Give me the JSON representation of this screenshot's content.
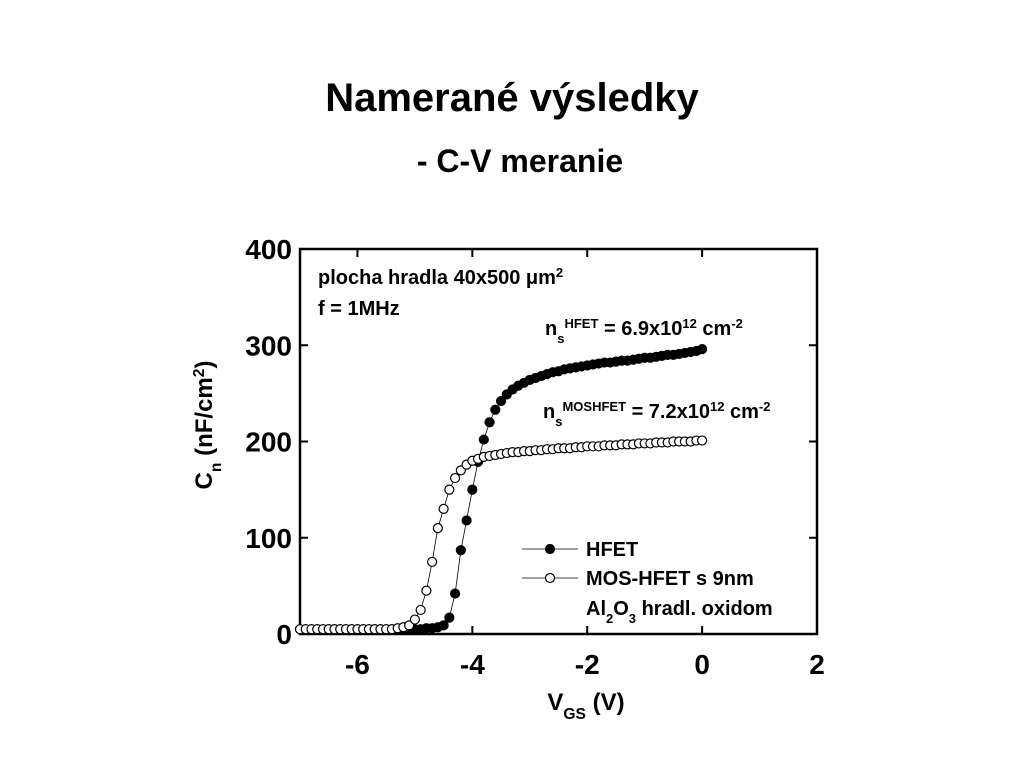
{
  "chart_data": {
    "type": "scatter",
    "title": "Namerané výsledky",
    "subtitle": "- C-V meranie",
    "x_label": [
      {
        "text": "V"
      },
      {
        "text": "GS",
        "shift": "sub"
      },
      {
        "text": " (V)"
      }
    ],
    "y_label": [
      {
        "text": "C"
      },
      {
        "text": "n",
        "shift": "sub"
      },
      {
        "text": " (nF/cm"
      },
      {
        "text": "2",
        "shift": "super"
      },
      {
        "text": ")"
      }
    ],
    "annotations": [
      [
        {
          "text": "plocha hradla 40x500 μm"
        },
        {
          "text": "2",
          "shift": "super"
        }
      ],
      [
        {
          "text": "f = 1MHz"
        }
      ],
      [
        {
          "text": "n"
        },
        {
          "text": "s",
          "shift": "sub"
        },
        {
          "text": "HFET",
          "shift": "super"
        },
        {
          "text": " = 6.9x10"
        },
        {
          "text": "12",
          "shift": "super"
        },
        {
          "text": " cm"
        },
        {
          "text": "-2",
          "shift": "super"
        }
      ],
      [
        {
          "text": "n"
        },
        {
          "text": "s",
          "shift": "sub"
        },
        {
          "text": "MOSHFET",
          "shift": "super"
        },
        {
          "text": " = 7.2x10"
        },
        {
          "text": "12",
          "shift": "super"
        },
        {
          "text": " cm"
        },
        {
          "text": "-2",
          "shift": "super"
        }
      ]
    ],
    "legend_note": [
      {
        "text": "Al"
      },
      {
        "text": "2",
        "shift": "sub"
      },
      {
        "text": "O"
      },
      {
        "text": "3",
        "shift": "sub"
      },
      {
        "text": " hradl. oxidom"
      }
    ],
    "xlim": [
      -7,
      2
    ],
    "ylim": [
      0,
      400
    ],
    "xticks": [
      -6,
      -4,
      -2,
      0,
      2
    ],
    "yticks": [
      0,
      100,
      200,
      300,
      400
    ],
    "x": [
      -7.0,
      -6.9,
      -6.8,
      -6.7,
      -6.6,
      -6.5,
      -6.4,
      -6.3,
      -6.2,
      -6.1,
      -6.0,
      -5.9,
      -5.8,
      -5.7,
      -5.6,
      -5.5,
      -5.4,
      -5.3,
      -5.2,
      -5.1,
      -5.0,
      -4.9,
      -4.8,
      -4.7,
      -4.6,
      -4.5,
      -4.4,
      -4.3,
      -4.2,
      -4.1,
      -4.0,
      -3.9,
      -3.8,
      -3.7,
      -3.6,
      -3.5,
      -3.4,
      -3.3,
      -3.2,
      -3.1,
      -3.0,
      -2.9,
      -2.8,
      -2.7,
      -2.6,
      -2.5,
      -2.4,
      -2.3,
      -2.2,
      -2.1,
      -2.0,
      -1.9,
      -1.8,
      -1.7,
      -1.6,
      -1.5,
      -1.4,
      -1.3,
      -1.2,
      -1.1,
      -1.0,
      -0.9,
      -0.8,
      -0.7,
      -0.6,
      -0.5,
      -0.4,
      -0.3,
      -0.2,
      -0.1,
      0
    ],
    "series": [
      {
        "name": "HFET",
        "color": "#000000",
        "marker": "filled",
        "values": [
          5,
          5,
          5,
          5,
          5,
          5,
          5,
          5,
          5,
          5,
          5,
          5,
          5,
          5,
          5,
          5,
          5,
          5,
          5,
          5,
          5,
          5,
          6,
          6,
          7,
          9,
          17,
          42,
          87,
          118,
          150,
          179,
          202,
          220,
          233,
          242,
          249,
          254,
          258,
          261,
          264,
          266,
          268,
          270,
          272,
          273,
          275,
          276,
          277,
          278,
          279,
          280,
          281,
          282,
          282,
          283,
          284,
          284,
          285,
          286,
          287,
          287,
          288,
          289,
          290,
          290,
          291,
          292,
          293,
          294,
          296
        ]
      },
      {
        "name": "MOS-HFET s 9nm",
        "color": "#000000",
        "marker": "open",
        "values": [
          5,
          5,
          5,
          5,
          5,
          5,
          5,
          5,
          5,
          5,
          5,
          5,
          5,
          5,
          5,
          5,
          5,
          6,
          7,
          9,
          15,
          25,
          45,
          75,
          110,
          130,
          150,
          162,
          170,
          176,
          180,
          182,
          184,
          185,
          186,
          187,
          188,
          189,
          189,
          190,
          190,
          191,
          191,
          192,
          192,
          193,
          193,
          193,
          194,
          194,
          195,
          195,
          195,
          196,
          196,
          196,
          197,
          197,
          197,
          198,
          198,
          198,
          199,
          199,
          199,
          200,
          200,
          200,
          200,
          201,
          201
        ]
      }
    ]
  }
}
